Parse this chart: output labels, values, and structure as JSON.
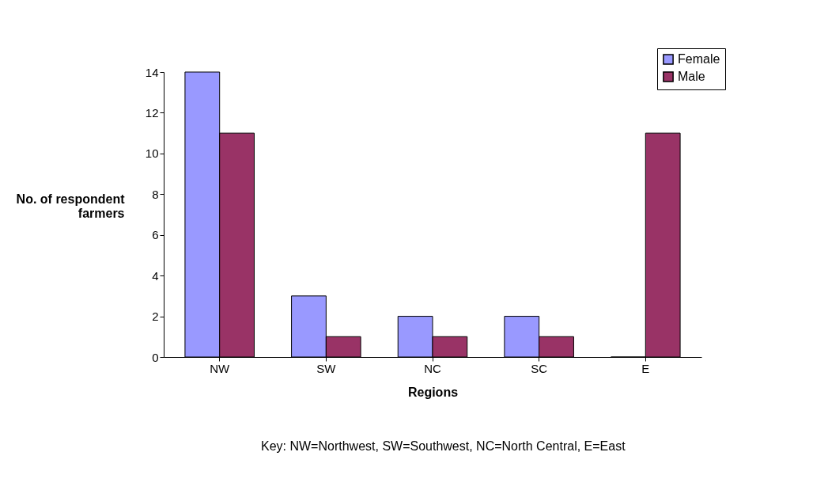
{
  "chart_data": {
    "type": "bar",
    "xlabel": "Regions",
    "ylabel": "No. of respondent farmers",
    "categories": [
      "NW",
      "SW",
      "NC",
      "SC",
      "E"
    ],
    "series": [
      {
        "name": "Female",
        "color": "#9999ff",
        "values": [
          14,
          3,
          2,
          2,
          0
        ]
      },
      {
        "name": "Male",
        "color": "#993366",
        "values": [
          11,
          1,
          1,
          1,
          11
        ]
      }
    ],
    "ylim": [
      0,
      14
    ],
    "yticks": [
      0,
      2,
      4,
      6,
      8,
      10,
      12,
      14
    ],
    "grid": false,
    "legend": "top right",
    "annotations": [
      "Key: NW=Northwest, SW=Southwest, NC=North Central, E=East"
    ]
  }
}
